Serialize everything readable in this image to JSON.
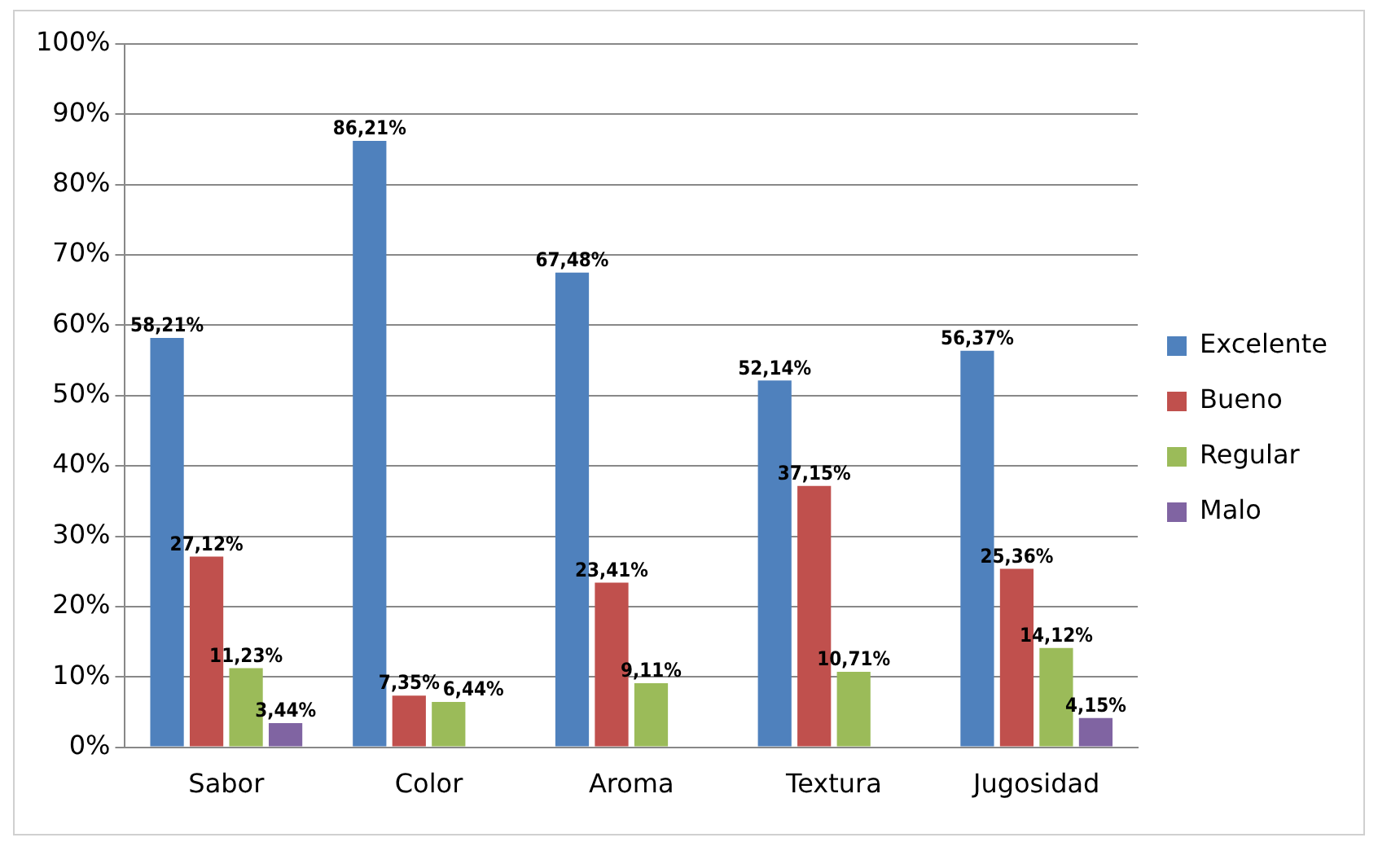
{
  "chart_data": {
    "type": "bar",
    "categories": [
      "Sabor",
      "Color",
      "Aroma",
      "Textura",
      "Jugosidad"
    ],
    "series": [
      {
        "name": "Excelente",
        "color": "#4f81bd",
        "values": [
          58.21,
          86.21,
          67.48,
          52.14,
          56.37
        ],
        "value_labels": [
          "58,21%",
          "86,21%",
          "67,48%",
          "52,14%",
          "56,37%"
        ]
      },
      {
        "name": "Bueno",
        "color": "#c0504d",
        "values": [
          27.12,
          7.35,
          23.41,
          37.15,
          25.36
        ],
        "value_labels": [
          "27,12%",
          "7,35%",
          "23,41%",
          "37,15%",
          "25,36%"
        ]
      },
      {
        "name": "Regular",
        "color": "#9bbb59",
        "values": [
          11.23,
          6.44,
          9.11,
          10.71,
          14.12
        ],
        "value_labels": [
          "11,23%",
          "6,44%",
          "9,11%",
          "10,71%",
          "14,12%"
        ]
      },
      {
        "name": "Malo",
        "color": "#8064a2",
        "values": [
          3.44,
          null,
          null,
          null,
          4.15
        ],
        "value_labels": [
          "3,44%",
          null,
          null,
          null,
          "4,15%"
        ]
      }
    ],
    "ylim": [
      0,
      100
    ],
    "yticks": [
      {
        "value": 0,
        "label": "0%"
      },
      {
        "value": 10,
        "label": "10%"
      },
      {
        "value": 20,
        "label": "20%"
      },
      {
        "value": 30,
        "label": "30%"
      },
      {
        "value": 40,
        "label": "40%"
      },
      {
        "value": 50,
        "label": "50%"
      },
      {
        "value": 60,
        "label": "60%"
      },
      {
        "value": 70,
        "label": "70%"
      },
      {
        "value": 80,
        "label": "80%"
      },
      {
        "value": 90,
        "label": "90%"
      },
      {
        "value": 100,
        "label": "100%"
      }
    ],
    "grid": "y",
    "legend": "right"
  }
}
